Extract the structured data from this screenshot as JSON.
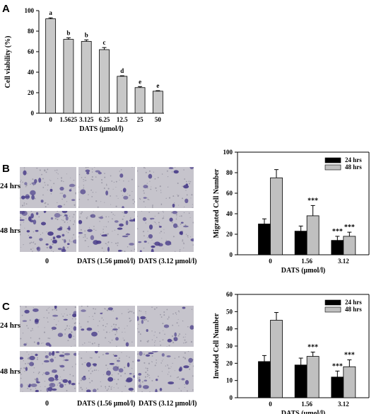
{
  "panels": {
    "A": "A",
    "B": "B",
    "C": "C"
  },
  "photo_labels": {
    "rows": [
      "24 hrs",
      "48 hrs"
    ],
    "conditions": [
      "0",
      "DATS (1.56 μmol/l)",
      "DATS (3.12 μmol/l)"
    ]
  },
  "colors": {
    "bar_gray": "#c8c8c8",
    "bar_black": "#000000",
    "bar_light": "#c0c0c0",
    "photo_bg": "#c6c4cc",
    "cell_purple": "#4a3e8a"
  },
  "chart_data": [
    {
      "type": "bar",
      "panel": "A",
      "categories": [
        "0",
        "1.5625",
        "3.125",
        "6.25",
        "12.5",
        "25",
        "50"
      ],
      "values": [
        92,
        72,
        70,
        62,
        36,
        25,
        21.5
      ],
      "errors": [
        1,
        1.5,
        1.5,
        2,
        0.5,
        1,
        0.5
      ],
      "annotations": [
        "a",
        "b",
        "b",
        "c",
        "d",
        "e",
        "e"
      ],
      "xlabel": "DATS (μmol/l)",
      "ylabel": "Cell viability (%)",
      "ylim": [
        0,
        100
      ],
      "yticks": [
        0,
        20,
        40,
        60,
        80,
        100
      ]
    },
    {
      "type": "bar",
      "panel": "B",
      "categories": [
        "0",
        "1.56",
        "3.12"
      ],
      "series": [
        {
          "name": "24 hrs",
          "values": [
            30,
            23,
            14
          ],
          "errors": [
            5,
            5,
            4
          ]
        },
        {
          "name": "48 hrs",
          "values": [
            75,
            38,
            18
          ],
          "errors": [
            8,
            10,
            4
          ]
        }
      ],
      "annotations": [
        {
          "category": 1,
          "series": 1,
          "text": "***"
        },
        {
          "category": 2,
          "series": 0,
          "text": "***"
        },
        {
          "category": 2,
          "series": 1,
          "text": "***"
        }
      ],
      "xlabel": "DATS (μmol/l)",
      "ylabel": "Migrated Cell Number",
      "ylim": [
        0,
        100
      ],
      "yticks": [
        0,
        20,
        40,
        60,
        80,
        100
      ],
      "legend": "top-right"
    },
    {
      "type": "bar",
      "panel": "C",
      "categories": [
        "0",
        "1.56",
        "3.12"
      ],
      "series": [
        {
          "name": "24 hrs",
          "values": [
            21,
            19,
            12
          ],
          "errors": [
            3.5,
            4,
            3.5
          ]
        },
        {
          "name": "48 hrs",
          "values": [
            45,
            24,
            18
          ],
          "errors": [
            4.5,
            2.5,
            4
          ]
        }
      ],
      "annotations": [
        {
          "category": 1,
          "series": 1,
          "text": "***"
        },
        {
          "category": 2,
          "series": 0,
          "text": "***"
        },
        {
          "category": 2,
          "series": 1,
          "text": "***"
        }
      ],
      "xlabel": "DATS (μmol/l)",
      "ylabel": "Invaded Cell Number",
      "ylim": [
        0,
        60
      ],
      "yticks": [
        0,
        10,
        20,
        30,
        40,
        50,
        60
      ],
      "legend": "top-right"
    }
  ]
}
